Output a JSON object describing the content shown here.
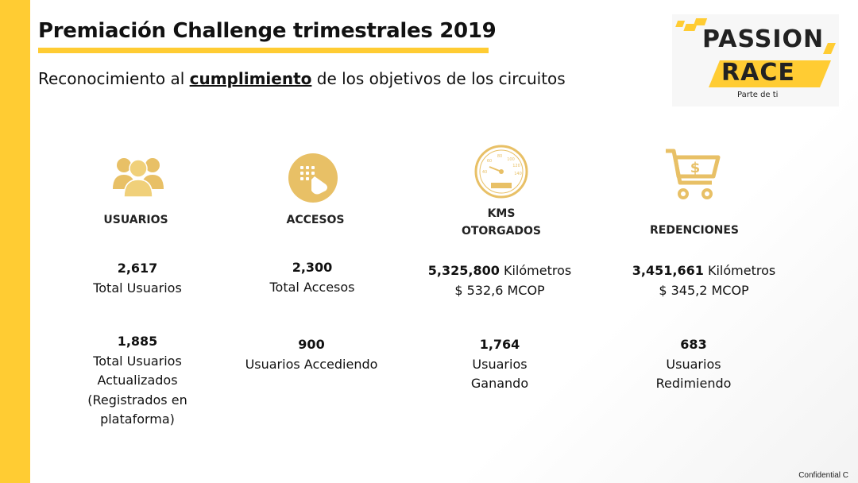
{
  "slide": {
    "title": "Premiación Challenge trimestrales 2019",
    "subtitle_pre": "Reconocimiento al ",
    "subtitle_em": "cumplimiento",
    "subtitle_post": " de los objetivos de los circuitos",
    "confidential": "Confidential C",
    "accent_color": "#ffcc33",
    "icon_color": "#e8c066"
  },
  "logo": {
    "line1": "PASSION",
    "line2": "RACE",
    "tagline": "Parte de ti"
  },
  "columns": [
    {
      "icon": "users-icon",
      "label": "USUARIOS",
      "stat1_value": "2,617",
      "stat1_text": "Total Usuarios",
      "stat2_value": "1,885",
      "stat2_lines": [
        "Total Usuarios",
        "Actualizados",
        "(Registrados en",
        "plataforma)"
      ]
    },
    {
      "icon": "touch-icon",
      "label": "ACCESOS",
      "stat1_value": "2,300",
      "stat1_text": "Total Accesos",
      "stat2_value": "900",
      "stat2_lines": [
        "Usuarios Accediendo"
      ]
    },
    {
      "icon": "speedometer-icon",
      "label_line1": "KMS",
      "label_line2": "OTORGADOS",
      "stat1_value": "5,325,800",
      "stat1_unit": " Kilómetros",
      "stat1_money": "$ 532,6 MCOP",
      "stat2_value": "1,764",
      "stat2_lines": [
        "Usuarios",
        "Ganando"
      ]
    },
    {
      "icon": "cart-icon",
      "label": "REDENCIONES",
      "stat1_value": "3,451,661",
      "stat1_unit": " Kilómetros",
      "stat1_money": "$ 345,2 MCOP",
      "stat2_value": "683",
      "stat2_lines": [
        "Usuarios",
        "Redimiendo"
      ]
    }
  ]
}
